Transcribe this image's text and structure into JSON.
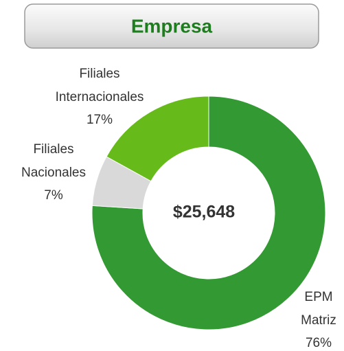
{
  "chart_data": {
    "type": "donut",
    "title": "Empresa",
    "center_label": "$25,648",
    "categories": [
      "EPM Matriz",
      "Filiales Nacionales",
      "Filiales Internacionales"
    ],
    "values": [
      76,
      7,
      17
    ],
    "value_labels": [
      "76%",
      "7%",
      "17%"
    ],
    "colors": [
      "#339933",
      "#d9d9d9",
      "#66bb1a"
    ]
  }
}
